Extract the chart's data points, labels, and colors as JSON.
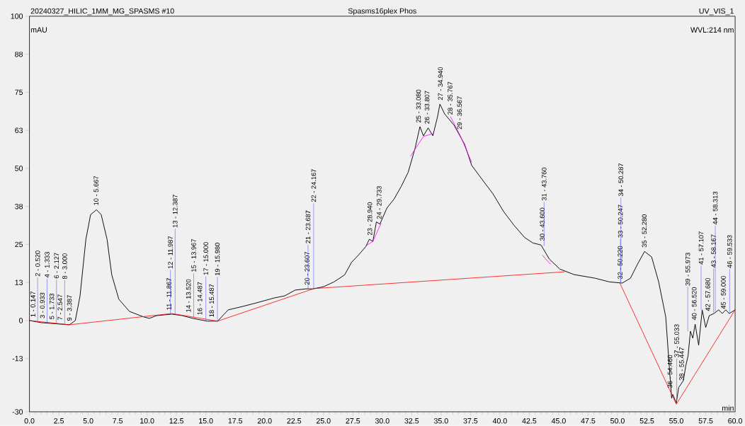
{
  "chart_data": {
    "type": "line",
    "title": "Spasms16plex Phos",
    "ylabel": "mAU",
    "xlabel": "min",
    "xlim": [
      0,
      60
    ],
    "ylim": [
      -30,
      100
    ],
    "xticks": [
      {
        "value": 0,
        "label": "0.0"
      },
      {
        "value": 2.5,
        "label": "2.5"
      },
      {
        "value": 5,
        "label": "5.0"
      },
      {
        "value": 7.5,
        "label": "7.5"
      },
      {
        "value": 10,
        "label": "10.0"
      },
      {
        "value": 12.5,
        "label": "12.5"
      },
      {
        "value": 15,
        "label": "15.0"
      },
      {
        "value": 17.5,
        "label": "17.5"
      },
      {
        "value": 20,
        "label": "20.0"
      },
      {
        "value": 22.5,
        "label": "22.5"
      },
      {
        "value": 25,
        "label": "25.0"
      },
      {
        "value": 27.5,
        "label": "27.5"
      },
      {
        "value": 30,
        "label": "30.0"
      },
      {
        "value": 32.5,
        "label": "32.5"
      },
      {
        "value": 35,
        "label": "35.0"
      },
      {
        "value": 37.5,
        "label": "37.5"
      },
      {
        "value": 40,
        "label": "40.0"
      },
      {
        "value": 42.5,
        "label": "42.5"
      },
      {
        "value": 45,
        "label": "45.0"
      },
      {
        "value": 47.5,
        "label": "47.5"
      },
      {
        "value": 50,
        "label": "50.0"
      },
      {
        "value": 52.5,
        "label": "52.5"
      },
      {
        "value": 55,
        "label": "55.0"
      },
      {
        "value": 57.5,
        "label": "57.5"
      },
      {
        "value": 60,
        "label": "60.0"
      }
    ],
    "yticks": [
      -30,
      {
        "value": -12.5,
        "label": "-13"
      },
      0,
      {
        "value": 12.5,
        "label": "13"
      },
      25,
      {
        "value": 37.5,
        "label": "38"
      },
      50,
      {
        "value": 62.5,
        "label": "63"
      },
      75,
      {
        "value": 87.5,
        "label": "88"
      },
      100
    ],
    "grid": false,
    "series": [
      {
        "color": "#000000",
        "x": [
          0,
          1.0,
          3.4,
          3.9,
          4.3,
          4.8,
          5.2,
          5.7,
          6.1,
          6.6,
          7.0,
          7.6,
          8.5,
          9.7,
          10.2,
          10.8,
          12.1,
          13.0,
          13.9,
          15.1,
          16.0,
          16.9,
          18.1,
          19.3,
          20.8,
          21.7,
          22.6,
          23.5,
          24.1,
          25.0,
          25.9,
          26.8,
          27.4,
          28.0,
          28.6,
          28.9,
          29.2,
          29.5,
          29.8,
          30.4,
          31.0,
          31.6,
          32.2,
          32.8,
          33.2,
          33.5,
          33.9,
          34.3,
          34.7,
          34.9,
          35.3,
          36.1,
          36.5,
          37.0,
          37.6,
          38.5,
          39.4,
          40.3,
          41.2,
          42.1,
          42.8,
          43.5,
          44.2,
          45.1,
          46.3,
          48.1,
          49.3,
          50.4,
          51.1,
          51.7,
          52.3,
          52.9,
          53.5,
          54.1,
          54.4,
          54.6,
          54.7,
          55.0,
          55.2,
          55.4,
          55.6,
          55.8,
          56.0,
          56.2,
          56.4,
          56.6,
          56.9,
          57.2,
          57.5,
          57.8,
          58.2,
          58.6,
          58.9,
          59.2,
          59.5,
          60
        ],
        "values": [
          0,
          -0.7,
          -1.4,
          0,
          8,
          26.7,
          34.8,
          36.4,
          34.8,
          26.7,
          15,
          7,
          3,
          1.2,
          0.7,
          1.6,
          2.1,
          1.6,
          0.7,
          -0.2,
          -0.2,
          3.5,
          4.6,
          5.8,
          7.4,
          8.1,
          10,
          10.4,
          10.4,
          11.1,
          12.7,
          15,
          19.2,
          21.6,
          24.3,
          26.7,
          26,
          32.4,
          31.7,
          37,
          39.9,
          44,
          48.7,
          56.8,
          63.7,
          60.7,
          63.3,
          60.7,
          67,
          71.1,
          67.9,
          64.2,
          61.4,
          57.9,
          51,
          46.3,
          41.7,
          35.9,
          31.3,
          27.3,
          25.5,
          24.8,
          20.2,
          16.9,
          15.1,
          13.9,
          12.7,
          12.3,
          13.9,
          18.5,
          22.7,
          20.9,
          12.7,
          1.2,
          -15,
          -25.5,
          -24.3,
          -27.1,
          -22,
          -20.9,
          -19.7,
          -15,
          -11.6,
          -3.5,
          -5.8,
          -1.2,
          -8.1,
          3.5,
          -2.3,
          1.6,
          2.3,
          3.5,
          2.3,
          3.5,
          2.3,
          3.5
        ]
      },
      {
        "color": "#ff0000",
        "x": [
          0,
          3.4,
          9.5,
          12.1,
          16.0,
          24.2,
          45.5,
          null,
          50.2,
          55.0,
          60
        ],
        "values": [
          0,
          -1.4,
          1.2,
          2.3,
          -0.2,
          10.5,
          16.0,
          null,
          12.3,
          -27.5,
          3.5
        ]
      },
      {
        "color": "#ff00ff",
        "x": [
          28.6,
          29.2,
          29.9,
          null,
          32.4,
          33.5,
          34.4,
          null,
          35.8,
          36.6,
          37.6,
          null,
          43.6,
          44.3
        ],
        "values": [
          24.5,
          26,
          32,
          null,
          54,
          60.5,
          61.5,
          null,
          67,
          61,
          52,
          null,
          21.5,
          18.5
        ]
      }
    ],
    "annotations": [
      "20240327_HILIC_1MM_MG_SPASMS #10",
      "UV_VIS_1",
      "WVL:214 nm",
      {
        "text": "1 - 0.147",
        "x": 0.3,
        "y": -0.2
      },
      {
        "text": "2 - 0.520",
        "x": 0.7,
        "y": -0.4
      },
      {
        "text": "3 - 0.933",
        "x": 1.1,
        "y": -0.6
      },
      {
        "text": "4 - 1.333",
        "x": 1.5,
        "y": -0.8
      },
      {
        "text": "5 - 1.733",
        "x": 1.9,
        "y": -0.9
      },
      {
        "text": "6 - 2.127",
        "x": 2.3,
        "y": -1.1
      },
      {
        "text": "7 - 2.547",
        "x": 2.6,
        "y": -1.2
      },
      {
        "text": "8 - 3.000",
        "x": 3.0,
        "y": -1.3
      },
      {
        "text": "9 - 3.387",
        "x": 3.4,
        "y": -1.4
      },
      {
        "text": "10 - 5.667",
        "x": 5.667,
        "y": 36.5
      },
      {
        "text": "11 - 11.867",
        "x": 11.867,
        "y": 2.1
      },
      {
        "text": "12 - 11.987",
        "x": 11.987,
        "y": 2.1
      },
      {
        "text": "13 - 12.387",
        "x": 12.387,
        "y": 2.0
      },
      {
        "text": "14 - 13.520",
        "x": 13.52,
        "y": 1.4
      },
      {
        "text": "15 - 13.967",
        "x": 13.967,
        "y": 1.0
      },
      {
        "text": "16 - 14.487",
        "x": 14.487,
        "y": 0.5
      },
      {
        "text": "17 - 15.000",
        "x": 15.0,
        "y": 0
      },
      {
        "text": "18 - 15.487",
        "x": 15.487,
        "y": -0.2
      },
      {
        "text": "19 - 15.980",
        "x": 15.98,
        "y": -0.2
      },
      {
        "text": "20 - 23.607",
        "x": 23.607,
        "y": 10.4
      },
      {
        "text": "21 - 23.687",
        "x": 23.687,
        "y": 10.4
      },
      {
        "text": "22 - 24.167",
        "x": 24.167,
        "y": 10.4
      },
      {
        "text": "23 - 28.940",
        "x": 28.94,
        "y": 26.7
      },
      {
        "text": "24 - 29.733",
        "x": 29.733,
        "y": 32
      },
      {
        "text": "25 - 33.080",
        "x": 33.08,
        "y": 63.7
      },
      {
        "text": "26 - 33.807",
        "x": 33.807,
        "y": 63.3
      },
      {
        "text": "27 - 34.940",
        "x": 34.94,
        "y": 71.1
      },
      {
        "text": "28 - 35.767",
        "x": 35.767,
        "y": 66.3
      },
      {
        "text": "29 - 36.567",
        "x": 36.567,
        "y": 61.5
      },
      {
        "text": "30 - 43.600",
        "x": 43.6,
        "y": 24.9
      },
      {
        "text": "31 - 43.760",
        "x": 43.76,
        "y": 24.5
      },
      {
        "text": "32 - 50.220",
        "x": 50.22,
        "y": 12.3
      },
      {
        "text": "33 - 50.247",
        "x": 50.247,
        "y": 12.3
      },
      {
        "text": "34 - 50.287",
        "x": 50.287,
        "y": 12.3
      },
      {
        "text": "35 - 52.280",
        "x": 52.28,
        "y": 22.7
      },
      {
        "text": "36 - 54.460",
        "x": 54.46,
        "y": -23.5
      },
      {
        "text": "37 - 55.033",
        "x": 55.033,
        "y": -27
      },
      {
        "text": "38 - 55.447",
        "x": 55.447,
        "y": -21
      },
      {
        "text": "39 - 55.973",
        "x": 55.973,
        "y": -3.5
      },
      {
        "text": "40 - 56.520",
        "x": 56.52,
        "y": -1.2
      },
      {
        "text": "41 - 57.107",
        "x": 57.107,
        "y": 3.5
      },
      {
        "text": "42 - 57.680",
        "x": 57.68,
        "y": 1.8
      },
      {
        "text": "43 - 58.167",
        "x": 58.167,
        "y": 2.5
      },
      {
        "text": "44 - 58.313",
        "x": 58.313,
        "y": 3
      },
      {
        "text": "45 - 59.000",
        "x": 59.0,
        "y": 2.5
      },
      {
        "text": "46 - 59.533",
        "x": 59.533,
        "y": 2.3
      }
    ]
  }
}
